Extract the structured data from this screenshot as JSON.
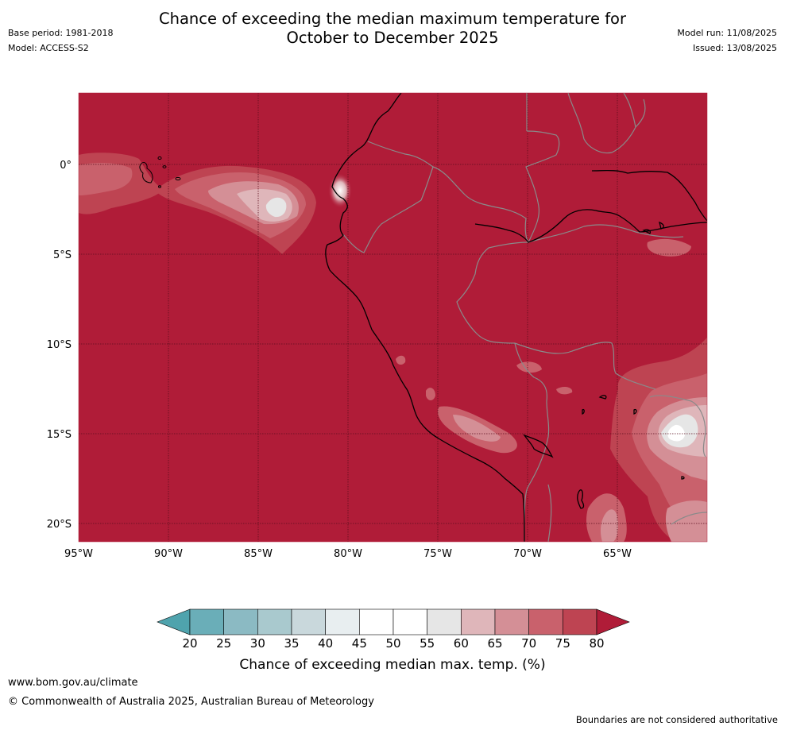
{
  "title": {
    "line1": "Chance of exceeding the median maximum temperature for",
    "line2": "October to December 2025"
  },
  "meta_left": {
    "base_period": "Base period: 1981-2018",
    "model": "Model: ACCESS-S2"
  },
  "meta_right": {
    "model_run": "Model run: 11/08/2025",
    "issued": "Issued: 13/08/2025"
  },
  "map": {
    "lat_ticks": [
      "0°",
      "5°S",
      "10°S",
      "15°S",
      "20°S"
    ],
    "lon_ticks": [
      "95°W",
      "90°W",
      "85°W",
      "80°W",
      "75°W",
      "70°W",
      "65°W"
    ],
    "background_category": "above 80%"
  },
  "colorbar": {
    "ticks": [
      "20",
      "25",
      "30",
      "35",
      "40",
      "45",
      "50",
      "55",
      "60",
      "65",
      "70",
      "75",
      "80"
    ],
    "colors": [
      "#4fa3ad",
      "#6aaeb8",
      "#8bbac3",
      "#a9c9ce",
      "#c9d8dc",
      "#e8eef0",
      "#ffffff",
      "#ffffff",
      "#e6e6e6",
      "#dfb6ba",
      "#d48f96",
      "#c9616c",
      "#be4452",
      "#b01c38"
    ],
    "label": "Chance of exceeding median max. temp. (%)"
  },
  "footer": {
    "url": "www.bom.gov.au/climate",
    "copyright": "© Commonwealth of Australia 2025, Australian Bureau of Meteorology",
    "note": "Boundaries are not considered authoritative"
  }
}
